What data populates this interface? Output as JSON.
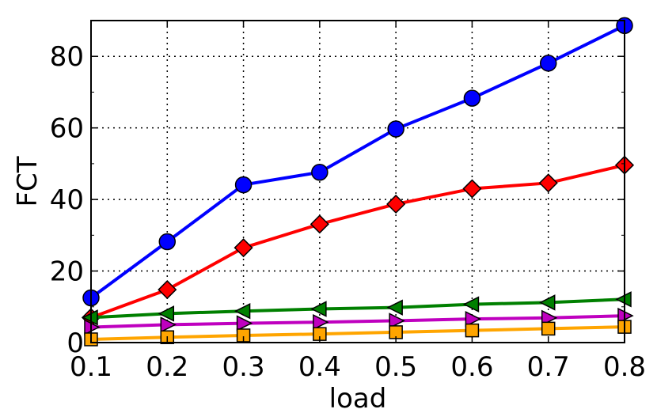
{
  "chart_data": {
    "type": "line",
    "xlabel": "load",
    "ylabel": "FCT",
    "xlim": [
      0.1,
      0.8
    ],
    "ylim": [
      0,
      90
    ],
    "grid": true,
    "x": [
      0.1,
      0.2,
      0.3,
      0.4,
      0.5,
      0.6,
      0.7,
      0.8
    ],
    "x_tick_labels": [
      "0.1",
      "0.2",
      "0.3",
      "0.4",
      "0.5",
      "0.6",
      "0.7",
      "0.8"
    ],
    "y_ticks": [
      0,
      20,
      40,
      60,
      80
    ],
    "y_tick_labels": [
      "0",
      "20",
      "40",
      "60",
      "80"
    ],
    "series": [
      {
        "color": "#0000ff",
        "marker": "circle",
        "values": [
          12.5,
          28.2,
          44.1,
          47.6,
          59.7,
          68.3,
          78.1,
          88.6
        ]
      },
      {
        "color": "#ff0000",
        "marker": "diamond",
        "values": [
          7.0,
          14.8,
          26.5,
          33.1,
          38.7,
          43.0,
          44.6,
          49.6
        ]
      },
      {
        "color": "#008000",
        "marker": "triangle-left",
        "values": [
          7.0,
          8.1,
          8.8,
          9.4,
          9.8,
          10.7,
          11.2,
          12.1
        ]
      },
      {
        "color": "#bf00bf",
        "marker": "triangle-right",
        "values": [
          4.3,
          5.0,
          5.4,
          5.7,
          6.1,
          6.6,
          6.9,
          7.5
        ]
      },
      {
        "color": "#ffa500",
        "marker": "square",
        "values": [
          0.9,
          1.5,
          2.0,
          2.4,
          2.9,
          3.4,
          3.9,
          4.4
        ]
      }
    ]
  }
}
